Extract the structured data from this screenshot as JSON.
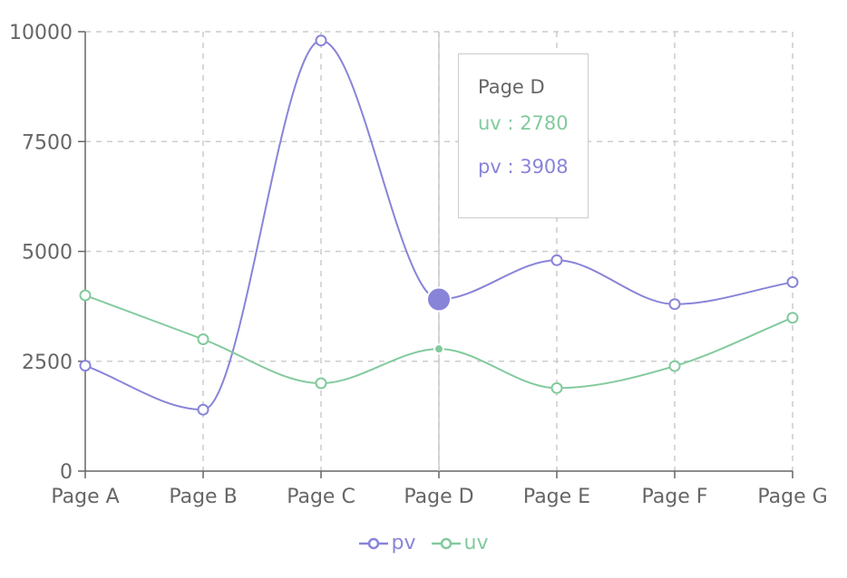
{
  "chart_data": {
    "type": "line",
    "categories": [
      "Page A",
      "Page B",
      "Page C",
      "Page D",
      "Page E",
      "Page F",
      "Page G"
    ],
    "series": [
      {
        "name": "pv",
        "color": "#8884d8",
        "values": [
          2400,
          1398,
          9800,
          3908,
          4800,
          3800,
          4300
        ]
      },
      {
        "name": "uv",
        "color": "#82ca9d",
        "values": [
          4000,
          3000,
          2000,
          2780,
          1890,
          2390,
          3490
        ]
      }
    ],
    "yticks": [
      0,
      2500,
      5000,
      7500,
      10000
    ],
    "ylim": [
      0,
      10000
    ],
    "grid": true,
    "legend_position": "bottom-center",
    "active_category": "Page D"
  },
  "tooltip": {
    "label": "Page D",
    "rows": [
      {
        "name": "uv",
        "separator": " : ",
        "value": "2780",
        "color": "#82ca9d"
      },
      {
        "name": "pv",
        "separator": " : ",
        "value": "3908",
        "color": "#8884d8"
      }
    ]
  },
  "legend": {
    "items": [
      {
        "label": "pv",
        "color": "#8884d8"
      },
      {
        "label": "uv",
        "color": "#82ca9d"
      }
    ]
  }
}
